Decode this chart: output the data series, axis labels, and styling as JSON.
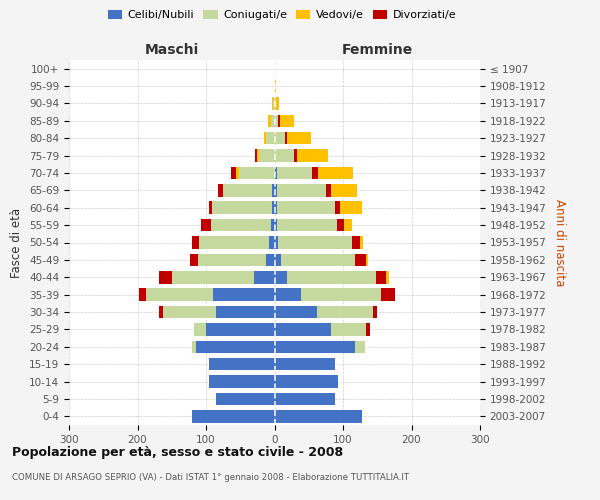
{
  "age_groups": [
    "0-4",
    "5-9",
    "10-14",
    "15-19",
    "20-24",
    "25-29",
    "30-34",
    "35-39",
    "40-44",
    "45-49",
    "50-54",
    "55-59",
    "60-64",
    "65-69",
    "70-74",
    "75-79",
    "80-84",
    "85-89",
    "90-94",
    "95-99",
    "100+"
  ],
  "birth_years": [
    "2003-2007",
    "1998-2002",
    "1993-1997",
    "1988-1992",
    "1983-1987",
    "1978-1982",
    "1973-1977",
    "1968-1972",
    "1963-1967",
    "1958-1962",
    "1953-1957",
    "1948-1952",
    "1943-1947",
    "1938-1942",
    "1933-1937",
    "1928-1932",
    "1923-1927",
    "1918-1922",
    "1913-1917",
    "1908-1912",
    "≤ 1907"
  ],
  "maschi": {
    "celibi": [
      120,
      85,
      95,
      95,
      115,
      100,
      85,
      90,
      30,
      12,
      8,
      5,
      3,
      3,
      0,
      0,
      0,
      0,
      0,
      0,
      0
    ],
    "coniugati": [
      0,
      0,
      0,
      0,
      5,
      18,
      78,
      98,
      120,
      100,
      102,
      88,
      88,
      72,
      52,
      22,
      12,
      5,
      2,
      0,
      0
    ],
    "vedovi": [
      0,
      0,
      0,
      0,
      0,
      0,
      0,
      0,
      0,
      0,
      0,
      0,
      0,
      0,
      4,
      4,
      4,
      5,
      1,
      0,
      0
    ],
    "divorziati": [
      0,
      0,
      0,
      0,
      0,
      0,
      5,
      10,
      18,
      12,
      10,
      15,
      5,
      8,
      7,
      3,
      0,
      0,
      0,
      0,
      0
    ]
  },
  "femmine": {
    "nubili": [
      128,
      88,
      92,
      88,
      118,
      82,
      62,
      38,
      18,
      10,
      5,
      3,
      3,
      3,
      3,
      0,
      0,
      0,
      0,
      0,
      0
    ],
    "coniugate": [
      0,
      0,
      0,
      0,
      14,
      52,
      82,
      118,
      130,
      108,
      108,
      88,
      85,
      72,
      52,
      28,
      15,
      5,
      2,
      0,
      0
    ],
    "vedove": [
      0,
      0,
      0,
      0,
      0,
      0,
      0,
      0,
      4,
      4,
      4,
      12,
      32,
      38,
      52,
      45,
      35,
      20,
      5,
      2,
      0
    ],
    "divorziate": [
      0,
      0,
      0,
      0,
      0,
      5,
      5,
      20,
      15,
      15,
      12,
      10,
      8,
      8,
      8,
      5,
      3,
      3,
      0,
      0,
      0
    ]
  },
  "colors": {
    "celibi": "#4472c4",
    "coniugati": "#c5d89e",
    "vedovi": "#ffc000",
    "divorziati": "#c00000"
  },
  "xlim": 300,
  "title": "Popolazione per età, sesso e stato civile - 2008",
  "subtitle": "COMUNE DI ARSAGO SEPRIO (VA) - Dati ISTAT 1° gennaio 2008 - Elaborazione TUTTITALIA.IT",
  "xlabel_left": "Maschi",
  "xlabel_right": "Femmine",
  "ylabel_left": "Fasce di età",
  "ylabel_right": "Anni di nascita",
  "bg_color": "#f4f4f4",
  "plot_bg": "#ffffff",
  "grid_color": "#cccccc"
}
